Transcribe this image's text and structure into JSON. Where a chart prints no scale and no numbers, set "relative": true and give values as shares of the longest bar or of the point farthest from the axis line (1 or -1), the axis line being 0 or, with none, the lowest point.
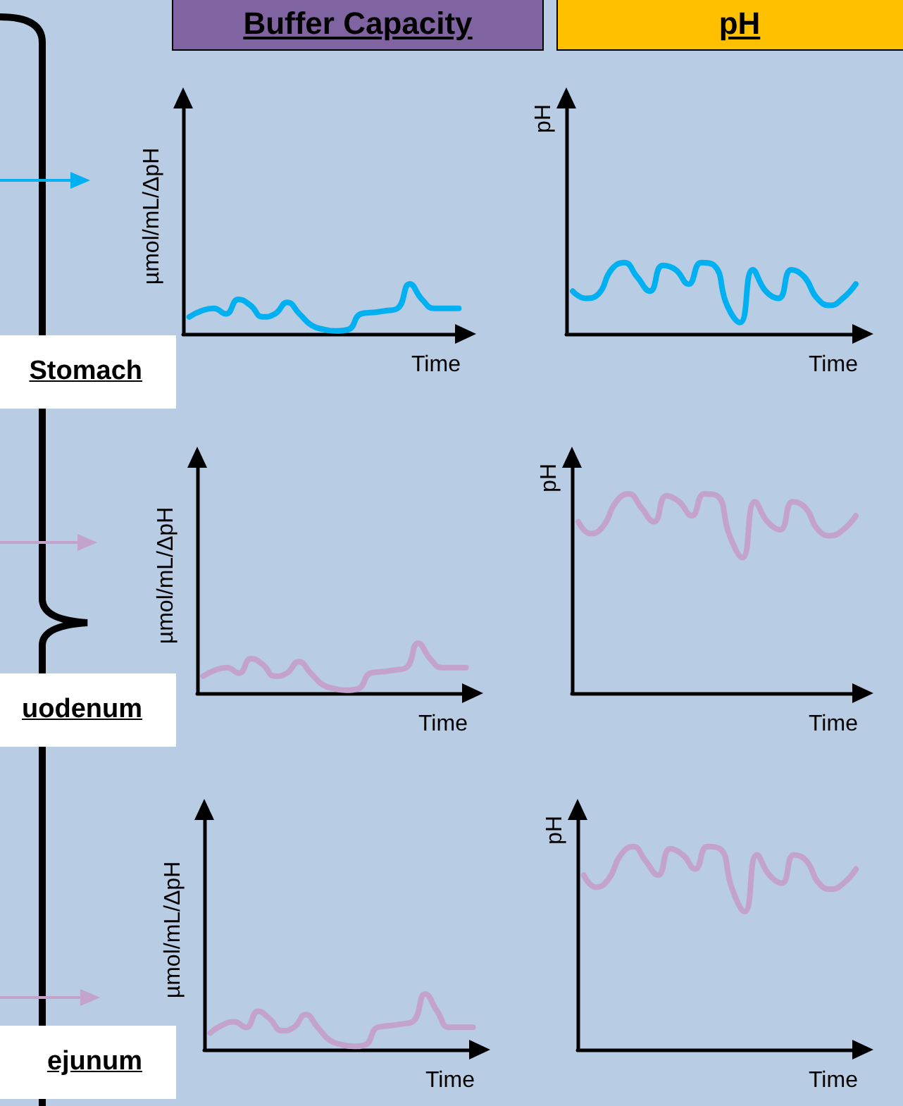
{
  "chart_data": [
    {
      "type": "line",
      "title": "Buffer Capacity",
      "xlabel": "Time",
      "ylabel": "µmol/mL/ΔpH",
      "annotations": [
        "Stomach"
      ],
      "relative": true,
      "categories": [
        null,
        null,
        null,
        null,
        null,
        null,
        null,
        null,
        null,
        null,
        null,
        null,
        null,
        null,
        null,
        null,
        null,
        null,
        null,
        null,
        null,
        null,
        null
      ],
      "series": [
        {
          "color": "#00b0f0",
          "values": [
            0.34,
            0.46,
            0.51,
            0.4,
            0.69,
            0.57,
            0.34,
            0.4,
            0.63,
            0.4,
            0.17,
            0.09,
            0.06,
            0.09,
            0.4,
            0.43,
            0.46,
            0.51,
            1,
            0.69,
            0.51,
            0.51,
            0.51
          ]
        }
      ]
    },
    {
      "type": "line",
      "title": "pH",
      "xlabel": "Time",
      "ylabel": "pH",
      "relative": true,
      "categories": [
        null,
        null,
        null,
        null,
        null,
        null,
        null,
        null,
        null,
        null,
        null,
        null,
        null,
        null,
        null,
        null,
        null,
        null,
        null,
        null,
        null,
        null,
        null
      ],
      "series": [
        {
          "color": "#00b0f0",
          "values": [
            0.6,
            0.5,
            0.56,
            0.9,
            1,
            0.8,
            0.6,
            0.96,
            0.9,
            0.7,
            1,
            0.96,
            0.4,
            0.16,
            0.9,
            0.6,
            0.5,
            0.9,
            0.8,
            0.5,
            0.4,
            0.5,
            0.7
          ]
        }
      ]
    },
    {
      "type": "line",
      "xlabel": "Time",
      "ylabel": "µmol/mL/ΔpH",
      "annotations": [
        "uodenum"
      ],
      "relative": true,
      "categories": [
        null,
        null,
        null,
        null,
        null,
        null,
        null,
        null,
        null,
        null,
        null,
        null,
        null,
        null,
        null,
        null,
        null,
        null,
        null,
        null,
        null,
        null,
        null
      ],
      "series": [
        {
          "color": "#c3a3cc",
          "values": [
            0.34,
            0.46,
            0.51,
            0.4,
            0.69,
            0.57,
            0.34,
            0.4,
            0.63,
            0.4,
            0.17,
            0.09,
            0.06,
            0.09,
            0.4,
            0.43,
            0.46,
            0.51,
            1,
            0.69,
            0.51,
            0.51,
            0.51
          ]
        }
      ]
    },
    {
      "type": "line",
      "xlabel": "Time",
      "ylabel": "pH",
      "relative": true,
      "categories": [
        null,
        null,
        null,
        null,
        null,
        null,
        null,
        null,
        null,
        null,
        null,
        null,
        null,
        null,
        null,
        null,
        null,
        null,
        null,
        null,
        null,
        null,
        null
      ],
      "series": [
        {
          "color": "#c3a3cc",
          "values": [
            0.86,
            0.8,
            0.84,
            0.96,
            1,
            0.93,
            0.86,
            0.99,
            0.96,
            0.89,
            1,
            0.99,
            0.79,
            0.68,
            0.96,
            0.86,
            0.82,
            0.96,
            0.93,
            0.82,
            0.79,
            0.82,
            0.89
          ]
        }
      ]
    },
    {
      "type": "line",
      "xlabel": "Time",
      "ylabel": "µmol/mL/ΔpH",
      "annotations": [
        "ejunum"
      ],
      "relative": true,
      "categories": [
        null,
        null,
        null,
        null,
        null,
        null,
        null,
        null,
        null,
        null,
        null,
        null,
        null,
        null,
        null,
        null,
        null,
        null,
        null,
        null,
        null,
        null,
        null
      ],
      "series": [
        {
          "color": "#c3a3cc",
          "values": [
            0.3,
            0.44,
            0.5,
            0.4,
            0.69,
            0.55,
            0.34,
            0.4,
            0.63,
            0.4,
            0.17,
            0.09,
            0.06,
            0.09,
            0.4,
            0.43,
            0.46,
            0.51,
            1,
            0.69,
            0.4,
            0.4,
            0.4
          ]
        }
      ]
    },
    {
      "type": "line",
      "xlabel": "Time",
      "ylabel": "pH",
      "relative": true,
      "categories": [
        null,
        null,
        null,
        null,
        null,
        null,
        null,
        null,
        null,
        null,
        null,
        null,
        null,
        null,
        null,
        null,
        null,
        null,
        null,
        null,
        null,
        null,
        null
      ],
      "series": [
        {
          "color": "#c3a3cc",
          "values": [
            0.86,
            0.8,
            0.84,
            0.96,
            1,
            0.93,
            0.86,
            0.99,
            0.96,
            0.89,
            1,
            0.99,
            0.79,
            0.68,
            0.96,
            0.86,
            0.82,
            0.96,
            0.93,
            0.82,
            0.79,
            0.82,
            0.89
          ]
        }
      ]
    }
  ]
}
